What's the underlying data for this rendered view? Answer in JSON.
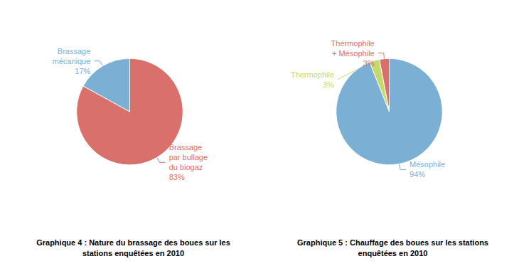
{
  "chart_data": [
    {
      "type": "pie",
      "title": "Graphique 4 : Nature du brassage des boues sur les\nstations enquêtées en 2010",
      "categories": [
        "Brassage\nmécanique",
        "Brassage\npar bullage\ndu biogaz"
      ],
      "values": [
        17,
        83
      ],
      "value_labels": [
        "17%",
        "83%"
      ],
      "colors": [
        "#7bafd4",
        "#d9706b"
      ],
      "data_labels": true
    },
    {
      "type": "pie",
      "title": "Graphique 5 : Chauffage des boues sur les stations\nenquêtées en 2010",
      "categories": [
        "Thermophile\n+ Mésophile",
        "Thermophile",
        "Mésophile"
      ],
      "values": [
        3,
        3,
        94
      ],
      "value_labels": [
        "3%",
        "3%",
        "94%"
      ],
      "colors": [
        "#d9706b",
        "#c6d96b",
        "#7bafd4"
      ],
      "data_labels": true
    }
  ]
}
